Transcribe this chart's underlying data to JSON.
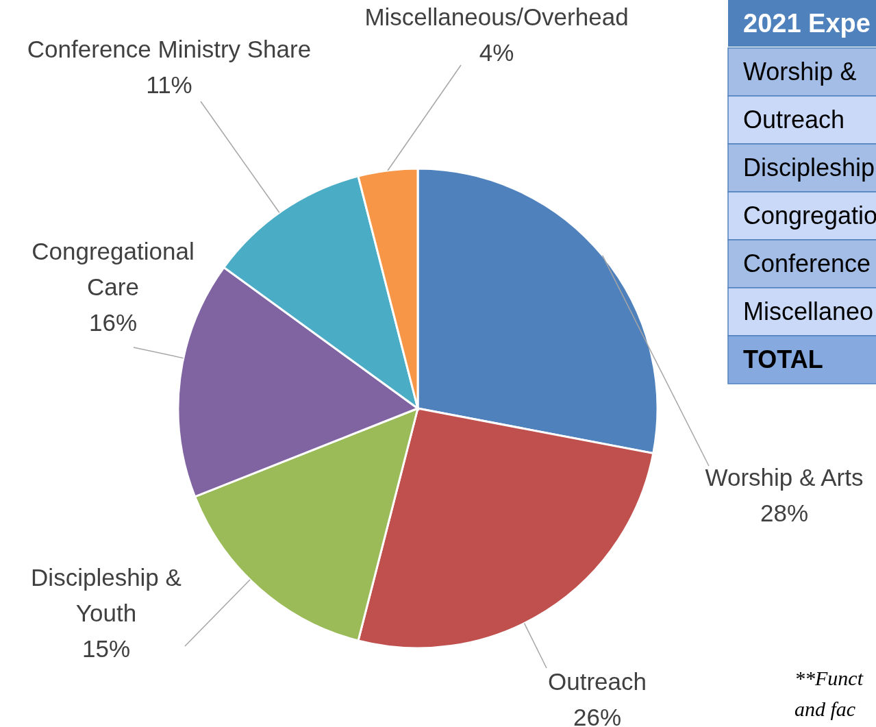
{
  "chart_data": [
    {
      "type": "pie",
      "categories": [
        "Worship & Arts",
        "Outreach",
        "Discipleship & Youth",
        "Congregational Care",
        "Conference Ministry Share",
        "Miscellaneous/Overhead"
      ],
      "values": [
        28,
        26,
        15,
        16,
        11,
        4
      ],
      "value_labels": [
        "28%",
        "26%",
        "15%",
        "16%",
        "11%",
        "4%"
      ],
      "colors": [
        "#4f81bd",
        "#c0504d",
        "#9bbb59",
        "#8064a2",
        "#4bacc6",
        "#f79646"
      ]
    },
    {
      "type": "other",
      "title": "2021 Expe",
      "categories": [
        "Worship &",
        "Outreach",
        "Discipleship",
        "Congregatio",
        "Conference",
        "Miscellaneo",
        "TOTAL"
      ],
      "annotations": [
        "**Funct",
        "and fac"
      ]
    }
  ]
}
